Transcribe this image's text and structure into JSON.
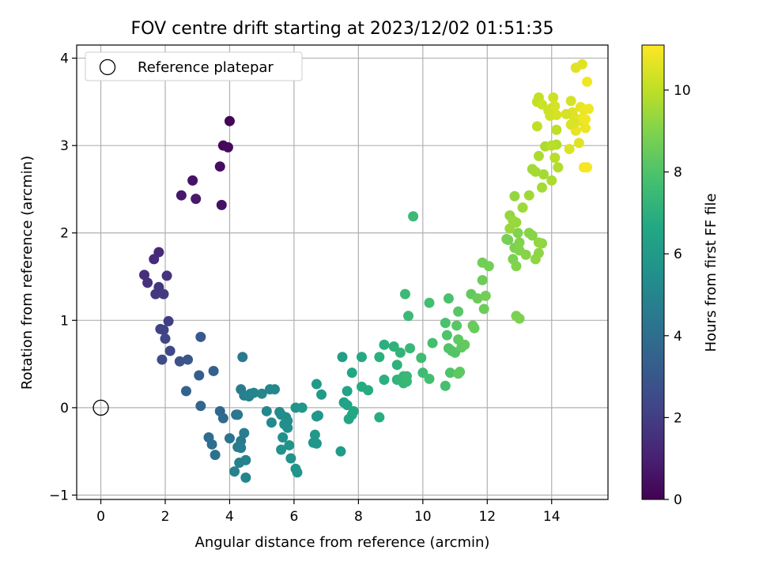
{
  "chart_data": {
    "type": "scatter",
    "title": "FOV centre drift starting at 2023/12/02 01:51:35",
    "xlabel": "Angular distance from reference (arcmin)",
    "ylabel": "Rotation from reference (arcmin)",
    "xlim": [
      -0.75,
      15.75
    ],
    "ylim": [
      -1.05,
      4.15
    ],
    "x_ticks": [
      0,
      2,
      4,
      6,
      8,
      10,
      12,
      14
    ],
    "y_ticks": [
      -1,
      0,
      1,
      2,
      3,
      4
    ],
    "grid": true,
    "legend": {
      "placement": "top-left",
      "entries": [
        "Reference platepar"
      ]
    },
    "reference_point": {
      "x": 0,
      "y": 0
    },
    "colorbar": {
      "label": "Hours from first FF file",
      "min": 0,
      "max": 11.1,
      "ticks": [
        0,
        2,
        4,
        6,
        8,
        10
      ],
      "colormap": "viridis"
    },
    "colors": {
      "marker_edge": "#000000",
      "grid": "#b0b0b0"
    },
    "points": [
      [
        4.0,
        3.28,
        0.1
      ],
      [
        3.8,
        3.0,
        0.2
      ],
      [
        3.95,
        2.98,
        0.3
      ],
      [
        3.7,
        2.76,
        0.4
      ],
      [
        3.75,
        2.32,
        0.5
      ],
      [
        2.85,
        2.6,
        0.6
      ],
      [
        2.5,
        2.43,
        0.7
      ],
      [
        2.95,
        2.39,
        0.8
      ],
      [
        1.8,
        1.78,
        1.3
      ],
      [
        1.65,
        1.7,
        1.4
      ],
      [
        1.35,
        1.52,
        1.5
      ],
      [
        1.45,
        1.43,
        1.55
      ],
      [
        2.05,
        1.51,
        1.6
      ],
      [
        1.8,
        1.38,
        1.7
      ],
      [
        1.7,
        1.3,
        1.8
      ],
      [
        1.95,
        1.3,
        1.9
      ],
      [
        2.1,
        0.99,
        2.0
      ],
      [
        1.85,
        0.9,
        2.1
      ],
      [
        1.95,
        0.89,
        2.2
      ],
      [
        2.0,
        0.79,
        2.3
      ],
      [
        2.15,
        0.65,
        2.4
      ],
      [
        1.9,
        0.55,
        2.6
      ],
      [
        2.45,
        0.53,
        2.8
      ],
      [
        2.7,
        0.55,
        3.0
      ],
      [
        3.1,
        0.81,
        3.1
      ],
      [
        3.05,
        0.37,
        3.3
      ],
      [
        3.5,
        0.42,
        3.4
      ],
      [
        2.65,
        0.19,
        3.5
      ],
      [
        3.1,
        0.02,
        3.6
      ],
      [
        3.7,
        -0.04,
        3.7
      ],
      [
        3.8,
        -0.12,
        3.8
      ],
      [
        3.35,
        -0.34,
        3.9
      ],
      [
        3.45,
        -0.42,
        4.0
      ],
      [
        3.55,
        -0.54,
        4.1
      ],
      [
        4.0,
        -0.35,
        4.2
      ],
      [
        4.2,
        -0.08,
        4.3
      ],
      [
        4.25,
        -0.08,
        4.4
      ],
      [
        4.35,
        -0.38,
        4.5
      ],
      [
        4.25,
        -0.45,
        4.6
      ],
      [
        4.35,
        -0.46,
        4.6
      ],
      [
        4.45,
        -0.29,
        4.7
      ],
      [
        4.3,
        -0.63,
        4.8
      ],
      [
        4.5,
        -0.6,
        4.9
      ],
      [
        4.15,
        -0.73,
        4.9
      ],
      [
        4.5,
        -0.8,
        5.0
      ],
      [
        4.4,
        0.58,
        4.5
      ],
      [
        4.35,
        0.21,
        4.6
      ],
      [
        4.45,
        0.14,
        4.7
      ],
      [
        4.6,
        0.13,
        4.8
      ],
      [
        4.65,
        0.16,
        4.9
      ],
      [
        4.75,
        0.17,
        5.0
      ],
      [
        5.0,
        0.16,
        5.1
      ],
      [
        5.25,
        0.21,
        5.1
      ],
      [
        5.4,
        0.21,
        5.2
      ],
      [
        5.15,
        -0.04,
        5.2
      ],
      [
        5.3,
        -0.17,
        5.3
      ],
      [
        5.55,
        -0.05,
        5.3
      ],
      [
        5.6,
        -0.08,
        5.4
      ],
      [
        5.75,
        -0.11,
        5.4
      ],
      [
        5.8,
        -0.15,
        5.4
      ],
      [
        5.7,
        -0.19,
        5.5
      ],
      [
        5.8,
        -0.23,
        5.5
      ],
      [
        5.65,
        -0.34,
        5.5
      ],
      [
        5.85,
        -0.43,
        5.6
      ],
      [
        5.6,
        -0.48,
        5.6
      ],
      [
        5.9,
        -0.58,
        5.6
      ],
      [
        6.05,
        -0.7,
        5.7
      ],
      [
        6.1,
        -0.74,
        5.7
      ],
      [
        6.05,
        0.0,
        5.7
      ],
      [
        6.25,
        0.0,
        5.8
      ],
      [
        6.6,
        -0.4,
        5.8
      ],
      [
        6.7,
        -0.41,
        5.8
      ],
      [
        6.65,
        -0.31,
        5.9
      ],
      [
        6.75,
        -0.09,
        5.9
      ],
      [
        6.7,
        -0.1,
        5.9
      ],
      [
        6.7,
        0.27,
        6.0
      ],
      [
        6.85,
        0.15,
        6.0
      ],
      [
        7.45,
        -0.5,
        6.1
      ],
      [
        7.5,
        0.58,
        6.2
      ],
      [
        7.55,
        0.06,
        6.3
      ],
      [
        7.65,
        0.03,
        6.4
      ],
      [
        7.65,
        0.19,
        6.4
      ],
      [
        7.7,
        -0.13,
        6.5
      ],
      [
        7.8,
        -0.08,
        6.5
      ],
      [
        7.85,
        -0.04,
        6.6
      ],
      [
        7.8,
        0.4,
        6.6
      ],
      [
        8.1,
        0.58,
        6.7
      ],
      [
        8.1,
        0.24,
        6.8
      ],
      [
        8.3,
        0.2,
        6.8
      ],
      [
        8.65,
        -0.11,
        6.9
      ],
      [
        8.65,
        0.58,
        7.0
      ],
      [
        8.8,
        0.32,
        7.0
      ],
      [
        8.8,
        0.72,
        7.0
      ],
      [
        9.1,
        0.7,
        7.1
      ],
      [
        9.2,
        0.49,
        7.1
      ],
      [
        9.3,
        0.63,
        7.2
      ],
      [
        9.2,
        0.32,
        7.2
      ],
      [
        9.4,
        0.28,
        7.3
      ],
      [
        9.4,
        0.36,
        7.3
      ],
      [
        9.5,
        0.3,
        7.4
      ],
      [
        9.5,
        0.36,
        7.4
      ],
      [
        9.6,
        0.68,
        7.4
      ],
      [
        9.45,
        1.3,
        7.5
      ],
      [
        9.55,
        1.05,
        7.5
      ],
      [
        9.7,
        2.19,
        7.5
      ],
      [
        9.95,
        0.57,
        7.6
      ],
      [
        10.0,
        0.4,
        7.6
      ],
      [
        10.2,
        0.33,
        7.7
      ],
      [
        10.2,
        1.2,
        7.7
      ],
      [
        10.3,
        0.74,
        7.7
      ],
      [
        10.7,
        0.25,
        7.8
      ],
      [
        10.8,
        1.25,
        7.9
      ],
      [
        10.7,
        0.97,
        7.9
      ],
      [
        10.75,
        0.83,
        8.0
      ],
      [
        10.8,
        0.68,
        8.0
      ],
      [
        10.85,
        0.4,
        8.0
      ],
      [
        10.9,
        0.65,
        8.1
      ],
      [
        11.0,
        0.63,
        8.1
      ],
      [
        11.05,
        0.94,
        8.2
      ],
      [
        11.1,
        1.1,
        8.2
      ],
      [
        11.1,
        0.78,
        8.3
      ],
      [
        11.2,
        0.69,
        8.3
      ],
      [
        11.15,
        0.41,
        8.3
      ],
      [
        11.1,
        0.39,
        8.3
      ],
      [
        11.3,
        0.72,
        8.4
      ],
      [
        11.5,
        1.3,
        8.4
      ],
      [
        11.55,
        0.94,
        8.5
      ],
      [
        11.6,
        0.91,
        8.5
      ],
      [
        11.7,
        1.25,
        8.6
      ],
      [
        11.85,
        1.46,
        8.6
      ],
      [
        11.9,
        1.13,
        8.6
      ],
      [
        11.95,
        1.28,
        8.7
      ],
      [
        11.85,
        1.66,
        8.7
      ],
      [
        12.05,
        1.62,
        8.7
      ],
      [
        12.6,
        1.93,
        8.8
      ],
      [
        12.65,
        1.92,
        8.8
      ],
      [
        12.8,
        1.7,
        8.9
      ],
      [
        12.85,
        1.83,
        8.9
      ],
      [
        12.9,
        1.05,
        8.9
      ],
      [
        13.0,
        1.02,
        8.9
      ],
      [
        12.9,
        1.62,
        9.0
      ],
      [
        13.0,
        1.8,
        9.0
      ],
      [
        12.95,
        2.0,
        9.0
      ],
      [
        13.0,
        1.89,
        9.0
      ],
      [
        13.2,
        1.75,
        9.1
      ],
      [
        13.3,
        2.0,
        9.1
      ],
      [
        13.4,
        1.97,
        9.1
      ],
      [
        13.5,
        1.7,
        9.2
      ],
      [
        13.6,
        1.77,
        9.2
      ],
      [
        13.7,
        1.88,
        9.2
      ],
      [
        13.6,
        1.89,
        9.3
      ],
      [
        12.85,
        2.42,
        9.3
      ],
      [
        12.7,
        2.2,
        9.3
      ],
      [
        12.8,
        2.14,
        9.4
      ],
      [
        12.9,
        2.12,
        9.4
      ],
      [
        12.7,
        2.05,
        9.4
      ],
      [
        13.1,
        2.29,
        9.5
      ],
      [
        13.3,
        2.43,
        9.5
      ],
      [
        13.4,
        2.73,
        9.5
      ],
      [
        13.5,
        2.7,
        9.6
      ],
      [
        13.7,
        2.52,
        9.6
      ],
      [
        13.75,
        2.67,
        9.6
      ],
      [
        13.6,
        2.88,
        9.7
      ],
      [
        13.8,
        2.99,
        9.7
      ],
      [
        14.0,
        2.6,
        9.7
      ],
      [
        14.2,
        2.75,
        9.8
      ],
      [
        14.15,
        3.01,
        9.8
      ],
      [
        14.0,
        3.0,
        9.9
      ],
      [
        14.1,
        2.86,
        9.9
      ],
      [
        14.15,
        3.18,
        10.0
      ],
      [
        13.55,
        3.22,
        10.0
      ],
      [
        13.55,
        3.5,
        10.1
      ],
      [
        13.6,
        3.55,
        10.1
      ],
      [
        13.7,
        3.47,
        10.2
      ],
      [
        13.9,
        3.4,
        10.2
      ],
      [
        13.95,
        3.34,
        10.3
      ],
      [
        14.0,
        3.43,
        10.3
      ],
      [
        14.05,
        3.55,
        10.3
      ],
      [
        14.1,
        3.45,
        10.4
      ],
      [
        14.15,
        3.35,
        10.4
      ],
      [
        14.6,
        3.51,
        10.4
      ],
      [
        14.55,
        2.96,
        10.5
      ],
      [
        14.6,
        3.24,
        10.5
      ],
      [
        14.7,
        3.32,
        10.5
      ],
      [
        14.75,
        3.89,
        10.6
      ],
      [
        14.85,
        3.03,
        10.6
      ],
      [
        14.95,
        3.93,
        10.6
      ],
      [
        14.9,
        3.44,
        10.7
      ],
      [
        14.9,
        3.28,
        10.7
      ],
      [
        14.75,
        3.17,
        10.7
      ],
      [
        14.95,
        3.31,
        10.8
      ],
      [
        15.0,
        3.41,
        10.8
      ],
      [
        15.05,
        3.2,
        10.8
      ],
      [
        15.05,
        3.3,
        10.9
      ],
      [
        15.1,
        3.73,
        10.9
      ],
      [
        15.15,
        3.42,
        10.9
      ],
      [
        15.0,
        2.75,
        11.0
      ],
      [
        15.1,
        2.75,
        11.0
      ],
      [
        14.65,
        3.38,
        10.6
      ],
      [
        14.7,
        3.26,
        10.5
      ],
      [
        14.45,
        3.36,
        10.4
      ]
    ]
  }
}
